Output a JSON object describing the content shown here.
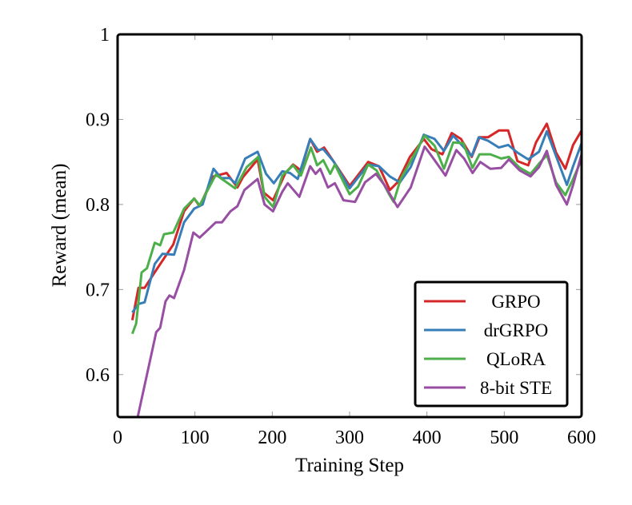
{
  "chart_data": {
    "type": "line",
    "title": "",
    "xlabel": "Training Step",
    "ylabel": "Reward (mean)",
    "xlim": [
      0,
      600
    ],
    "ylim": [
      0.55,
      1.0
    ],
    "xticks": [
      0,
      100,
      200,
      300,
      400,
      500,
      600
    ],
    "xtick_labels": [
      "0",
      "100",
      "200",
      "300",
      "400",
      "500",
      "600"
    ],
    "yticks": [
      0.6,
      0.7,
      0.8,
      0.9,
      1.0
    ],
    "ytick_labels": [
      "0.6",
      "0.7",
      "0.8",
      "0.9",
      "1"
    ],
    "grid": false,
    "legend_position": "bottom-right",
    "series": [
      {
        "name": "GRPO",
        "color": "#d62728",
        "x": [
          19,
          27,
          35,
          50,
          72,
          86,
          99,
          106,
          124,
          141,
          155,
          162,
          181,
          189,
          201,
          217,
          227,
          237,
          249,
          258,
          267,
          279,
          300,
          307,
          324,
          338,
          352,
          362,
          378,
          396,
          406,
          420,
          432,
          444,
          458,
          468,
          479,
          493,
          505,
          517,
          531,
          541,
          555,
          567,
          579,
          589,
          600
        ],
        "y": [
          0.664,
          0.702,
          0.702,
          0.723,
          0.753,
          0.792,
          0.807,
          0.798,
          0.833,
          0.837,
          0.82,
          0.832,
          0.853,
          0.814,
          0.805,
          0.837,
          0.847,
          0.84,
          0.877,
          0.862,
          0.867,
          0.851,
          0.822,
          0.83,
          0.85,
          0.845,
          0.817,
          0.826,
          0.856,
          0.877,
          0.865,
          0.859,
          0.884,
          0.877,
          0.856,
          0.879,
          0.879,
          0.887,
          0.887,
          0.851,
          0.846,
          0.873,
          0.895,
          0.861,
          0.842,
          0.87,
          0.887
        ]
      },
      {
        "name": "drGRPO",
        "color": "#377eb8",
        "x": [
          19,
          27,
          35,
          48,
          58,
          73,
          86,
          99,
          110,
          124,
          134,
          145,
          152,
          165,
          181,
          192,
          202,
          213,
          223,
          233,
          249,
          259,
          266,
          279,
          300,
          324,
          338,
          352,
          365,
          379,
          396,
          410,
          422,
          434,
          458,
          467,
          479,
          493,
          505,
          517,
          531,
          545,
          555,
          569,
          581,
          589,
          600
        ],
        "y": [
          0.673,
          0.683,
          0.685,
          0.73,
          0.742,
          0.741,
          0.779,
          0.795,
          0.8,
          0.842,
          0.831,
          0.831,
          0.825,
          0.854,
          0.862,
          0.836,
          0.825,
          0.839,
          0.837,
          0.83,
          0.877,
          0.864,
          0.865,
          0.851,
          0.819,
          0.847,
          0.845,
          0.833,
          0.826,
          0.844,
          0.882,
          0.877,
          0.863,
          0.881,
          0.857,
          0.879,
          0.875,
          0.867,
          0.87,
          0.861,
          0.853,
          0.862,
          0.886,
          0.852,
          0.823,
          0.845,
          0.872
        ]
      },
      {
        "name": "QLoRA",
        "color": "#4daf4a",
        "x": [
          19,
          24,
          31,
          38,
          48,
          55,
          60,
          72,
          86,
          99,
          106,
          127,
          138,
          152,
          167,
          182,
          190,
          201,
          213,
          227,
          237,
          250,
          258,
          266,
          275,
          281,
          300,
          311,
          324,
          335,
          351,
          357,
          366,
          379,
          397,
          410,
          422,
          434,
          447,
          459,
          468,
          482,
          496,
          506,
          520,
          534,
          545,
          555,
          567,
          579,
          589,
          600
        ],
        "y": [
          0.648,
          0.66,
          0.72,
          0.725,
          0.755,
          0.752,
          0.765,
          0.767,
          0.795,
          0.807,
          0.799,
          0.835,
          0.828,
          0.819,
          0.844,
          0.856,
          0.809,
          0.797,
          0.834,
          0.846,
          0.834,
          0.867,
          0.846,
          0.852,
          0.836,
          0.847,
          0.812,
          0.821,
          0.847,
          0.84,
          0.812,
          0.803,
          0.83,
          0.851,
          0.881,
          0.869,
          0.842,
          0.873,
          0.872,
          0.843,
          0.859,
          0.859,
          0.854,
          0.856,
          0.843,
          0.836,
          0.848,
          0.858,
          0.826,
          0.811,
          0.83,
          0.853
        ]
      },
      {
        "name": "8-bit STE",
        "color": "#984ea3",
        "x": [
          26,
          38,
          50,
          55,
          62,
          67,
          73,
          86,
          98,
          106,
          127,
          135,
          146,
          155,
          164,
          181,
          190,
          201,
          213,
          220,
          235,
          249,
          256,
          262,
          272,
          281,
          292,
          307,
          320,
          334,
          345,
          362,
          379,
          397,
          406,
          424,
          438,
          448,
          459,
          469,
          482,
          496,
          506,
          520,
          534,
          545,
          555,
          567,
          581,
          589,
          600
        ],
        "y": [
          0.55,
          0.6,
          0.65,
          0.655,
          0.686,
          0.693,
          0.69,
          0.723,
          0.767,
          0.761,
          0.779,
          0.779,
          0.792,
          0.798,
          0.817,
          0.83,
          0.8,
          0.792,
          0.815,
          0.825,
          0.809,
          0.845,
          0.836,
          0.842,
          0.82,
          0.825,
          0.805,
          0.803,
          0.826,
          0.836,
          0.823,
          0.797,
          0.82,
          0.868,
          0.857,
          0.834,
          0.864,
          0.854,
          0.837,
          0.85,
          0.842,
          0.843,
          0.853,
          0.84,
          0.833,
          0.844,
          0.863,
          0.823,
          0.8,
          0.823,
          0.859
        ]
      }
    ]
  }
}
